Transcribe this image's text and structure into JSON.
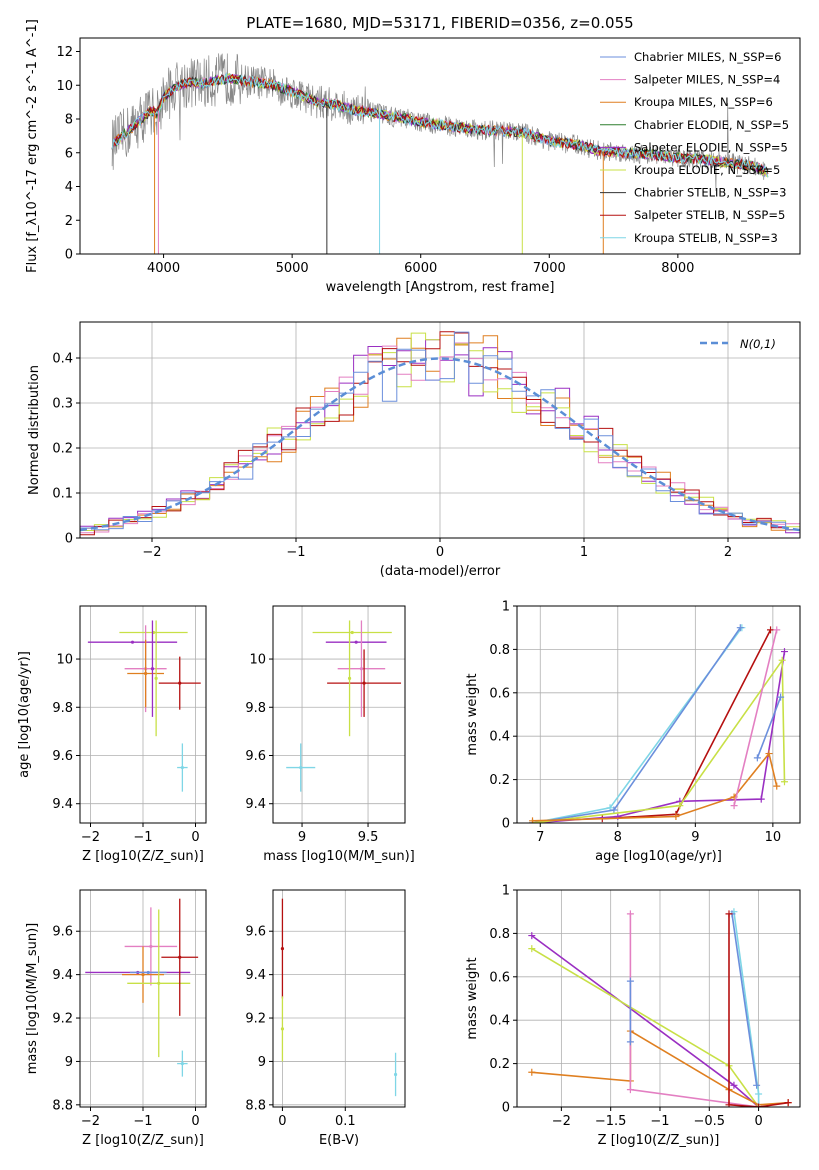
{
  "title": "PLATE=1680, MJD=53171, FIBERID=0356, z=0.055",
  "colors": {
    "chabrier_miles": "#6b8fdc",
    "salpeter_miles": "#e37fc2",
    "kroupa_miles": "#df7f20",
    "chabrier_elodie": "#2f7f2f",
    "salpeter_elodie": "#9a2fc2",
    "kroupa_elodie": "#c8e046",
    "chabrier_stelib": "#333333",
    "salpeter_stelib": "#b51010",
    "kroupa_stelib": "#7fd6e6",
    "data": "#888888",
    "normal": "#5b8ed6"
  },
  "chart_data": [
    {
      "id": "spectrum",
      "type": "line",
      "xlabel": "wavelength [Angstrom, rest frame]",
      "ylabel": "Flux [f_λ10^-17 erg cm^-2 s^-1 A^-1]",
      "xlim": [
        3350,
        8950
      ],
      "ylim": [
        0,
        12.8
      ],
      "xticks": [
        4000,
        5000,
        6000,
        7000,
        8000
      ],
      "yticks": [
        0,
        2,
        4,
        6,
        8,
        10,
        12
      ],
      "grid": false,
      "legend_position": "top-right",
      "model_continuum": {
        "x": [
          3600,
          3700,
          3800,
          3900,
          3950,
          4000,
          4100,
          4200,
          4300,
          4400,
          4500,
          4600,
          4700,
          4800,
          4900,
          5000,
          5100,
          5200,
          5300,
          5400,
          5500,
          5600,
          5700,
          5800,
          5900,
          6000,
          6200,
          6400,
          6600,
          6800,
          7000,
          7200,
          7400,
          7600,
          7800,
          8000,
          8200,
          8400,
          8600,
          8700
        ],
        "y": [
          6.5,
          7.1,
          7.8,
          8.5,
          8.3,
          9.3,
          9.9,
          10.2,
          10.1,
          10.3,
          10.4,
          10.3,
          10.2,
          10.1,
          9.9,
          9.6,
          9.3,
          9.0,
          8.9,
          8.7,
          8.5,
          8.4,
          8.3,
          8.1,
          8.0,
          7.8,
          7.6,
          7.4,
          7.3,
          7.2,
          6.7,
          6.5,
          6.1,
          6.0,
          5.9,
          5.7,
          5.6,
          5.4,
          5.2,
          4.8
        ]
      },
      "legend": [
        {
          "label": "Chabrier MILES, N_SSP=6",
          "color_key": "chabrier_miles"
        },
        {
          "label": "Salpeter MILES, N_SSP=4",
          "color_key": "salpeter_miles"
        },
        {
          "label": "Kroupa MILES, N_SSP=6",
          "color_key": "kroupa_miles"
        },
        {
          "label": "Chabrier ELODIE, N_SSP=5",
          "color_key": "chabrier_elodie"
        },
        {
          "label": "Salpeter ELODIE, N_SSP=5",
          "color_key": "salpeter_elodie"
        },
        {
          "label": "Kroupa ELODIE, N_SSP=5",
          "color_key": "kroupa_elodie"
        },
        {
          "label": "Chabrier STELIB, N_SSP=3",
          "color_key": "chabrier_stelib"
        },
        {
          "label": "Salpeter STELIB, N_SSP=5",
          "color_key": "salpeter_stelib"
        },
        {
          "label": "Kroupa STELIB, N_SSP=3",
          "color_key": "kroupa_stelib"
        }
      ]
    },
    {
      "id": "residuals",
      "type": "line",
      "xlabel": "(data-model)/error",
      "ylabel": "Normed distribution",
      "xlim": [
        -2.5,
        2.5
      ],
      "ylim": [
        0,
        0.48
      ],
      "xticks": [
        -2,
        -1,
        0,
        1,
        2
      ],
      "yticks": [
        0.0,
        0.1,
        0.2,
        0.3,
        0.4
      ],
      "grid": true,
      "legend_position": "top-right",
      "normal_label": "N(0,1)",
      "bin_width": 0.1,
      "series_colors": [
        "salpeter_elodie",
        "kroupa_miles",
        "kroupa_elodie",
        "salpeter_miles",
        "salpeter_stelib",
        "chabrier_miles"
      ]
    },
    {
      "id": "z_age",
      "type": "scatter",
      "xlabel": "Z [log10(Z/Z_sun)]",
      "ylabel": "age [log10(age/yr)]",
      "xlim": [
        -2.2,
        0.2
      ],
      "ylim": [
        9.32,
        10.22
      ],
      "xticks": [
        -2,
        -1,
        0
      ],
      "yticks": [
        9.4,
        9.6,
        9.8,
        10.0
      ],
      "grid": true,
      "points": [
        {
          "color_key": "salpeter_elodie",
          "x": -1.2,
          "xerr": 0.85,
          "y": 10.07,
          "yerr": 0.0
        },
        {
          "color_key": "kroupa_elodie",
          "x": -0.8,
          "xerr": 0.65,
          "y": 10.11,
          "yerr": 0.0
        },
        {
          "color_key": "salpeter_miles",
          "x": -0.95,
          "xerr": 0.4,
          "y": 9.96,
          "yerr": 0.18
        },
        {
          "color_key": "kroupa_miles",
          "x": -0.95,
          "xerr": 0.35,
          "y": 9.94,
          "yerr": 0.14
        },
        {
          "color_key": "salpeter_elodie",
          "x": -0.82,
          "xerr": 0.0,
          "y": 9.96,
          "yerr": 0.2
        },
        {
          "color_key": "kroupa_elodie",
          "x": -0.75,
          "xerr": 0.0,
          "y": 9.92,
          "yerr": 0.24
        },
        {
          "color_key": "salpeter_stelib",
          "x": -0.3,
          "xerr": 0.4,
          "y": 9.9,
          "yerr": 0.11
        },
        {
          "color_key": "kroupa_stelib",
          "x": -0.25,
          "xerr": 0.1,
          "y": 9.55,
          "yerr": 0.1
        }
      ]
    },
    {
      "id": "mass_age",
      "type": "scatter",
      "xlabel": "mass [log10(M/M_sun)]",
      "ylabel": "",
      "xlim": [
        8.78,
        9.78
      ],
      "ylim": [
        9.32,
        10.22
      ],
      "xticks": [
        9.0,
        9.5
      ],
      "yticks": [
        9.4,
        9.6,
        9.8,
        10.0
      ],
      "grid": true,
      "points": [
        {
          "color_key": "kroupa_elodie",
          "x": 9.38,
          "xerr": 0.3,
          "y": 10.11,
          "yerr": 0.0
        },
        {
          "color_key": "salpeter_elodie",
          "x": 9.41,
          "xerr": 0.23,
          "y": 10.07,
          "yerr": 0.0
        },
        {
          "color_key": "salpeter_miles",
          "x": 9.45,
          "xerr": 0.18,
          "y": 9.96,
          "yerr": 0.2
        },
        {
          "color_key": "salpeter_stelib",
          "x": 9.47,
          "xerr": 0.28,
          "y": 9.9,
          "yerr": 0.14
        },
        {
          "color_key": "kroupa_elodie",
          "x": 9.36,
          "xerr": 0.0,
          "y": 9.92,
          "yerr": 0.24
        },
        {
          "color_key": "kroupa_stelib",
          "x": 8.99,
          "xerr": 0.11,
          "y": 9.55,
          "yerr": 0.1
        }
      ]
    },
    {
      "id": "age_mass_weight",
      "type": "line",
      "xlabel": "age [log10(age/yr)]",
      "ylabel": "mass weight",
      "xlim": [
        6.7,
        10.35
      ],
      "ylim": [
        0,
        1.0
      ],
      "xticks": [
        7,
        8,
        9,
        10
      ],
      "yticks": [
        0.0,
        0.2,
        0.4,
        0.6,
        0.8,
        1.0
      ],
      "grid": true,
      "series": [
        {
          "color_key": "kroupa_stelib",
          "x": [
            6.9,
            7.9,
            9.6
          ],
          "y": [
            0.0,
            0.07,
            0.9
          ]
        },
        {
          "color_key": "chabrier_miles",
          "x": [
            6.9,
            7.95,
            9.58
          ],
          "y": [
            0.0,
            0.06,
            0.9
          ]
        },
        {
          "color_key": "salpeter_stelib",
          "x": [
            7.8,
            8.75,
            9.97
          ],
          "y": [
            0.02,
            0.04,
            0.89
          ]
        },
        {
          "color_key": "salpeter_elodie",
          "x": [
            6.9,
            8.0,
            8.8,
            9.85,
            10.15
          ],
          "y": [
            0.0,
            0.03,
            0.1,
            0.11,
            0.79
          ]
        },
        {
          "color_key": "kroupa_elodie",
          "x": [
            6.9,
            8.8,
            10.12,
            10.15
          ],
          "y": [
            0.0,
            0.08,
            0.75,
            0.19
          ]
        },
        {
          "color_key": "kroupa_miles",
          "x": [
            6.9,
            8.75,
            9.5,
            9.95,
            10.05
          ],
          "y": [
            0.01,
            0.03,
            0.12,
            0.32,
            0.17
          ]
        },
        {
          "color_key": "salpeter_miles",
          "x": [
            9.5,
            10.05
          ],
          "y": [
            0.08,
            0.89
          ]
        },
        {
          "color_key": "chabrier_miles",
          "x": [
            9.8,
            10.1
          ],
          "y": [
            0.3,
            0.58
          ]
        }
      ]
    },
    {
      "id": "z_mass",
      "type": "scatter",
      "xlabel": "Z [log10(Z/Z_sun)]",
      "ylabel": "mass [log10(M/M_sun)]",
      "xlim": [
        -2.2,
        0.2
      ],
      "ylim": [
        8.79,
        9.79
      ],
      "xticks": [
        -2,
        -1,
        0
      ],
      "yticks": [
        8.8,
        9.0,
        9.2,
        9.4,
        9.6
      ],
      "grid": true,
      "points": [
        {
          "color_key": "salpeter_elodie",
          "x": -1.1,
          "xerr": 1.0,
          "y": 9.41,
          "yerr": 0.0
        },
        {
          "color_key": "salpeter_miles",
          "x": -0.85,
          "xerr": 0.5,
          "y": 9.53,
          "yerr": 0.18
        },
        {
          "color_key": "kroupa_miles",
          "x": -1.0,
          "xerr": 0.4,
          "y": 9.4,
          "yerr": 0.13
        },
        {
          "color_key": "chabrier_miles",
          "x": -0.9,
          "xerr": 0.35,
          "y": 9.41,
          "yerr": 0.0
        },
        {
          "color_key": "kroupa_elodie",
          "x": -0.7,
          "xerr": 0.6,
          "y": 9.36,
          "yerr": 0.34
        },
        {
          "color_key": "salpeter_stelib",
          "x": -0.3,
          "xerr": 0.35,
          "y": 9.48,
          "yerr": 0.27
        },
        {
          "color_key": "kroupa_stelib",
          "x": -0.25,
          "xerr": 0.1,
          "y": 8.99,
          "yerr": 0.06
        }
      ]
    },
    {
      "id": "ebv_mass",
      "type": "scatter",
      "xlabel": "E(B-V)",
      "ylabel": "",
      "xlim": [
        -0.015,
        0.195
      ],
      "ylim": [
        8.79,
        9.79
      ],
      "xticks": [
        0.0,
        0.1
      ],
      "yticks": [
        8.8,
        9.0,
        9.2,
        9.4,
        9.6
      ],
      "grid": true,
      "points": [
        {
          "color_key": "salpeter_stelib",
          "x": 0.0,
          "xerr": 0.0,
          "y": 9.52,
          "yerr": 0.23
        },
        {
          "color_key": "kroupa_elodie",
          "x": 0.0,
          "xerr": 0.0,
          "y": 9.15,
          "yerr": 0.15
        },
        {
          "color_key": "kroupa_stelib",
          "x": 0.18,
          "xerr": 0.0,
          "y": 8.94,
          "yerr": 0.1
        }
      ]
    },
    {
      "id": "z_mass_weight",
      "type": "line",
      "xlabel": "Z [log10(Z/Z_sun)]",
      "ylabel": "mass weight",
      "xlim": [
        -2.45,
        0.42
      ],
      "ylim": [
        0,
        1.0
      ],
      "xticks": [
        -2.0,
        -1.5,
        -1.0,
        -0.5,
        0.0
      ],
      "yticks": [
        0.0,
        0.2,
        0.4,
        0.6,
        0.8,
        1.0
      ],
      "grid": true,
      "series": [
        {
          "color_key": "salpeter_elodie",
          "x": [
            -2.3,
            -0.25,
            0.0
          ],
          "y": [
            0.79,
            0.1,
            0.0
          ]
        },
        {
          "color_key": "kroupa_elodie",
          "x": [
            -2.3,
            -0.3,
            0.0
          ],
          "y": [
            0.73,
            0.19,
            0.0
          ]
        },
        {
          "color_key": "kroupa_miles",
          "x": [
            -2.3,
            -1.3,
            -1.3,
            -0.3,
            0.0,
            0.3
          ],
          "y": [
            0.16,
            0.12,
            0.35,
            0.08,
            0.01,
            0.02
          ]
        },
        {
          "color_key": "salpeter_miles",
          "x": [
            -1.3,
            -1.3,
            0.0
          ],
          "y": [
            0.89,
            0.08,
            0.0
          ]
        },
        {
          "color_key": "chabrier_miles",
          "x": [
            -1.3,
            -1.3
          ],
          "y": [
            0.58,
            0.3
          ]
        },
        {
          "color_key": "kroupa_stelib",
          "x": [
            -0.25,
            0.0,
            0.0
          ],
          "y": [
            0.9,
            0.06,
            0.0
          ]
        },
        {
          "color_key": "chabrier_miles",
          "x": [
            -0.27,
            -0.02
          ],
          "y": [
            0.89,
            0.1
          ]
        },
        {
          "color_key": "salpeter_stelib",
          "x": [
            -0.3,
            -0.3,
            0.0,
            0.3
          ],
          "y": [
            0.89,
            0.01,
            0.0,
            0.02
          ]
        }
      ]
    }
  ]
}
